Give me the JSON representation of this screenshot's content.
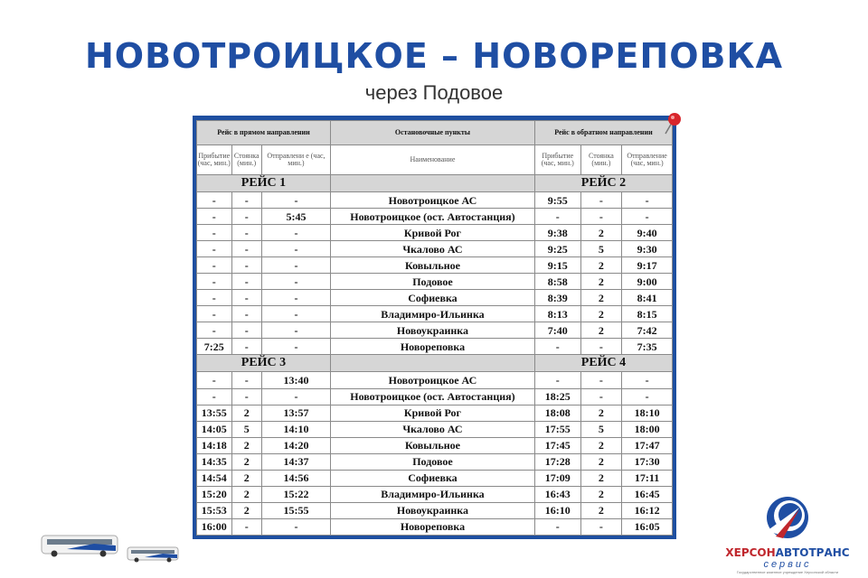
{
  "title": "НОВОТРОИЦКОЕ – НОВОРЕПОВКА",
  "subtitle": "через Подовое",
  "table": {
    "header": {
      "forward": "Рейс в прямом направлении",
      "stops": "Остановочные пункты",
      "backward": "Рейс в обратном направлении"
    },
    "subheader": {
      "arrival": "Прибытие (час, мин.)",
      "stop": "Стоянка (мин.)",
      "departure_fwd": "Отправлени е (час, мин.)",
      "name": "Наименование",
      "arrival_back": "Прибытие (час, мин.)",
      "stop_back": "Стоянка (мин.)",
      "departure_back": "Отправление (час, мин.)"
    },
    "blocks": [
      {
        "trip_fwd": "РЕЙС 1",
        "trip_back": "РЕЙС 2",
        "rows": [
          [
            "-",
            "-",
            "-",
            "Новотроицкое АС",
            "9:55",
            "-",
            "-"
          ],
          [
            "-",
            "-",
            "5:45",
            "Новотроицкое (ост. Автостанция)",
            "-",
            "-",
            "-"
          ],
          [
            "-",
            "-",
            "-",
            "Кривой Рог",
            "9:38",
            "2",
            "9:40"
          ],
          [
            "-",
            "-",
            "-",
            "Чкалово АС",
            "9:25",
            "5",
            "9:30"
          ],
          [
            "-",
            "-",
            "-",
            "Ковыльное",
            "9:15",
            "2",
            "9:17"
          ],
          [
            "-",
            "-",
            "-",
            "Подовое",
            "8:58",
            "2",
            "9:00"
          ],
          [
            "-",
            "-",
            "-",
            "Софиевка",
            "8:39",
            "2",
            "8:41"
          ],
          [
            "-",
            "-",
            "-",
            "Владимиро-Ильинка",
            "8:13",
            "2",
            "8:15"
          ],
          [
            "-",
            "-",
            "-",
            "Новоукраинка",
            "7:40",
            "2",
            "7:42"
          ],
          [
            "7:25",
            "-",
            "-",
            "Новореповка",
            "-",
            "-",
            "7:35"
          ]
        ]
      },
      {
        "trip_fwd": "РЕЙС 3",
        "trip_back": "РЕЙС 4",
        "rows": [
          [
            "-",
            "-",
            "13:40",
            "Новотроицкое АС",
            "-",
            "-",
            "-"
          ],
          [
            "-",
            "-",
            "-",
            "Новотроицкое (ост. Автостанция)",
            "18:25",
            "-",
            "-"
          ],
          [
            "13:55",
            "2",
            "13:57",
            "Кривой Рог",
            "18:08",
            "2",
            "18:10"
          ],
          [
            "14:05",
            "5",
            "14:10",
            "Чкалово АС",
            "17:55",
            "5",
            "18:00"
          ],
          [
            "14:18",
            "2",
            "14:20",
            "Ковыльное",
            "17:45",
            "2",
            "17:47"
          ],
          [
            "14:35",
            "2",
            "14:37",
            "Подовое",
            "17:28",
            "2",
            "17:30"
          ],
          [
            "14:54",
            "2",
            "14:56",
            "Софиевка",
            "17:09",
            "2",
            "17:11"
          ],
          [
            "15:20",
            "2",
            "15:22",
            "Владимиро-Ильинка",
            "16:43",
            "2",
            "16:45"
          ],
          [
            "15:53",
            "2",
            "15:55",
            "Новоукраинка",
            "16:10",
            "2",
            "16:12"
          ],
          [
            "16:00",
            "-",
            "-",
            "Новореповка",
            "-",
            "-",
            "16:05"
          ]
        ]
      }
    ]
  },
  "logo": {
    "brand_red": "ХЕРСОН",
    "brand_blue": "АВТОТРАНС",
    "service": "сервис",
    "caption": "Государственное казенное учреждение Херсонской области"
  },
  "colors": {
    "brand_blue": "#1f4ea3",
    "brand_red": "#c0272d",
    "header_gray": "#d6d6d6"
  }
}
